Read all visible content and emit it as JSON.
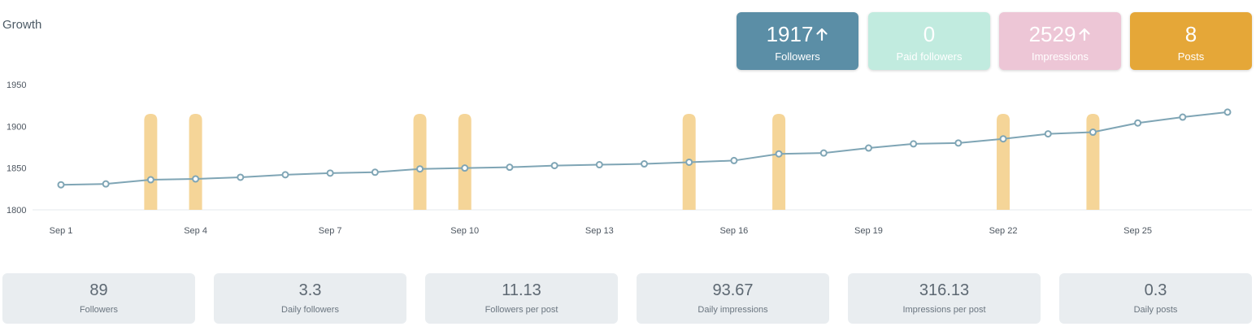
{
  "header": {
    "title": "Growth"
  },
  "kpis": [
    {
      "value": "1917",
      "label": "Followers",
      "trend": "up",
      "color": "#5b8ea6"
    },
    {
      "value": "0",
      "label": "Paid followers",
      "trend": "none",
      "color": "#c1ebdf"
    },
    {
      "value": "2529",
      "label": "Impressions",
      "trend": "up",
      "color": "#edc6d6"
    },
    {
      "value": "8",
      "label": "Posts",
      "trend": "none",
      "color": "#e5a738"
    }
  ],
  "stats": [
    {
      "value": "89",
      "label": "Followers"
    },
    {
      "value": "3.3",
      "label": "Daily followers"
    },
    {
      "value": "11.13",
      "label": "Followers per post"
    },
    {
      "value": "93.67",
      "label": "Daily impressions"
    },
    {
      "value": "316.13",
      "label": "Impressions per post"
    },
    {
      "value": "0.3",
      "label": "Daily posts"
    }
  ],
  "chart_data": {
    "type": "line",
    "title": "Growth",
    "x": [
      "Sep 1",
      "Sep 2",
      "Sep 3",
      "Sep 4",
      "Sep 5",
      "Sep 6",
      "Sep 7",
      "Sep 8",
      "Sep 9",
      "Sep 10",
      "Sep 11",
      "Sep 12",
      "Sep 13",
      "Sep 14",
      "Sep 15",
      "Sep 16",
      "Sep 17",
      "Sep 18",
      "Sep 19",
      "Sep 20",
      "Sep 21",
      "Sep 22",
      "Sep 23",
      "Sep 24",
      "Sep 25",
      "Sep 26",
      "Sep 27"
    ],
    "x_tick_labels": [
      "Sep 1",
      "Sep 4",
      "Sep 7",
      "Sep 10",
      "Sep 13",
      "Sep 16",
      "Sep 19",
      "Sep 22",
      "Sep 25"
    ],
    "series": [
      {
        "values": [
          1830,
          1831,
          1836,
          1837,
          1839,
          1842,
          1844,
          1845,
          1849,
          1850,
          1851,
          1853,
          1854,
          1855,
          1857,
          1859,
          1867,
          1868,
          1874,
          1879,
          1880,
          1885,
          1891,
          1893,
          1904,
          1911,
          1917
        ]
      }
    ],
    "post_markers": [
      "Sep 3",
      "Sep 4",
      "Sep 9",
      "Sep 10",
      "Sep 15",
      "Sep 17",
      "Sep 22",
      "Sep 24"
    ],
    "ylim": [
      1800,
      1950
    ],
    "y_ticks": [
      1800,
      1850,
      1900,
      1950
    ],
    "grid": false,
    "colors": {
      "line": "#7fa5b5",
      "marker": "#f5d598",
      "axis": "#e6e9ec"
    }
  }
}
